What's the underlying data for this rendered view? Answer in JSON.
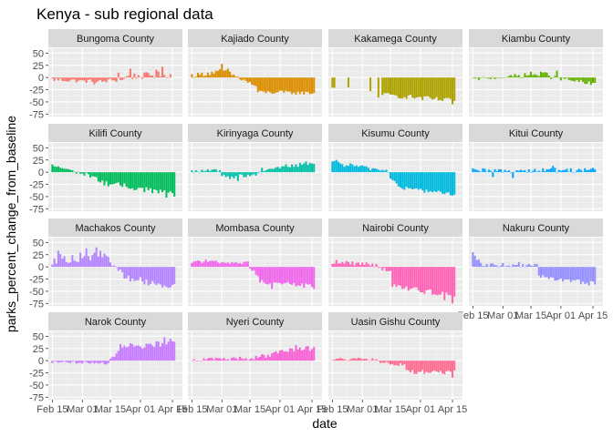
{
  "chart_data": {
    "type": "bar",
    "title": "Kenya - sub regional data",
    "xlabel": "date",
    "ylabel": "parks_percent_change_from_baseline",
    "ylim": [
      -80,
      60
    ],
    "y_ticks": [
      50,
      25,
      0,
      -25,
      -50,
      -75
    ],
    "y_tick_labels": [
      "50",
      "25",
      "0",
      "-25",
      "-50",
      "-75"
    ],
    "x_range_days": [
      -2,
      65
    ],
    "x_tick_days": [
      0,
      15,
      29,
      44,
      60
    ],
    "x_tick_labels": [
      "Feb 15",
      "Mar 01",
      "Mar 15",
      "Apr 01",
      "Apr 15"
    ],
    "facet_layout": "4 columns x 4 rows",
    "facets": [
      {
        "name": "Bungoma County",
        "color": "#F8766D",
        "segments": [
          {
            "from": 0,
            "to": 20,
            "start": -4,
            "end": -8,
            "noise": 4
          },
          {
            "from": 21,
            "to": 36,
            "start": -10,
            "end": -3,
            "noise": 5
          },
          {
            "from": 37,
            "to": 59,
            "start": 2,
            "end": 6,
            "noise": 7
          }
        ],
        "spikes": [
          [
            33,
            10
          ],
          [
            39,
            18
          ],
          [
            52,
            16
          ],
          [
            55,
            22
          ]
        ]
      },
      {
        "name": "Kajiado County",
        "color": "#DB8E00",
        "segments": [
          {
            "from": 0,
            "to": 18,
            "start": 4,
            "end": 15,
            "noise": 5
          },
          {
            "from": 19,
            "to": 32,
            "start": 8,
            "end": -18,
            "noise": 5
          },
          {
            "from": 33,
            "to": 61,
            "start": -30,
            "end": -32,
            "noise": 4
          }
        ],
        "spikes": [
          [
            15,
            28
          ]
        ]
      },
      {
        "name": "Kakamega County",
        "color": "#AEA200",
        "segments": [
          {
            "from": 0,
            "to": 1,
            "start": -22,
            "end": -22,
            "noise": 2
          },
          {
            "from": 8,
            "to": 8,
            "start": -20,
            "end": -20,
            "noise": 1
          },
          {
            "from": 19,
            "to": 19,
            "start": -28,
            "end": -28,
            "noise": 1
          },
          {
            "from": 23,
            "to": 23,
            "start": -40,
            "end": -40,
            "noise": 1
          },
          {
            "from": 25,
            "to": 61,
            "start": -35,
            "end": -48,
            "noise": 5
          }
        ],
        "spikes": [
          [
            60,
            -55
          ]
        ]
      },
      {
        "name": "Kiambu County",
        "color": "#64B200",
        "segments": [
          {
            "from": 0,
            "to": 20,
            "start": -3,
            "end": 2,
            "noise": 3
          },
          {
            "from": 21,
            "to": 38,
            "start": 3,
            "end": 8,
            "noise": 5
          },
          {
            "from": 39,
            "to": 61,
            "start": 2,
            "end": -15,
            "noise": 5
          }
        ],
        "spikes": [
          [
            29,
            12
          ],
          [
            42,
            14
          ]
        ]
      },
      {
        "name": "Kilifi County",
        "color": "#00BD5C",
        "segments": [
          {
            "from": 0,
            "to": 8,
            "start": 14,
            "end": 5,
            "noise": 3
          },
          {
            "from": 9,
            "to": 22,
            "start": 3,
            "end": -10,
            "noise": 4
          },
          {
            "from": 23,
            "to": 61,
            "start": -20,
            "end": -45,
            "noise": 6
          }
        ],
        "spikes": [
          [
            57,
            -52
          ]
        ]
      },
      {
        "name": "Kirinyaga County",
        "color": "#00C1A7",
        "segments": [
          {
            "from": 0,
            "to": 14,
            "start": 2,
            "end": 4,
            "noise": 3
          },
          {
            "from": 15,
            "to": 33,
            "start": -10,
            "end": -5,
            "noise": 5
          },
          {
            "from": 34,
            "to": 61,
            "start": 5,
            "end": 20,
            "noise": 5
          }
        ],
        "spikes": [
          [
            23,
            -18
          ]
        ]
      },
      {
        "name": "Kisumu County",
        "color": "#00BADE",
        "segments": [
          {
            "from": 0,
            "to": 14,
            "start": 18,
            "end": 12,
            "noise": 5
          },
          {
            "from": 15,
            "to": 28,
            "start": 10,
            "end": 3,
            "noise": 4
          },
          {
            "from": 29,
            "to": 33,
            "start": -10,
            "end": -30,
            "noise": 4
          },
          {
            "from": 34,
            "to": 61,
            "start": -32,
            "end": -45,
            "noise": 4
          }
        ],
        "spikes": [
          [
            2,
            25
          ]
        ]
      },
      {
        "name": "Kitui County",
        "color": "#00A6FF",
        "segments": [
          {
            "from": 0,
            "to": 61,
            "start": 3,
            "end": 5,
            "noise": 5
          }
        ],
        "spikes": [
          [
            10,
            -10
          ],
          [
            20,
            -12
          ],
          [
            40,
            13
          ]
        ]
      },
      {
        "name": "Machakos County",
        "color": "#B385FF",
        "segments": [
          {
            "from": 0,
            "to": 28,
            "start": 15,
            "end": 25,
            "noise": 10
          },
          {
            "from": 29,
            "to": 35,
            "start": 5,
            "end": -10,
            "noise": 5
          },
          {
            "from": 36,
            "to": 61,
            "start": -22,
            "end": -40,
            "noise": 7
          }
        ],
        "spikes": [
          [
            3,
            33
          ],
          [
            17,
            38
          ],
          [
            22,
            40
          ]
        ]
      },
      {
        "name": "Mombasa County",
        "color": "#EF67EB",
        "segments": [
          {
            "from": 0,
            "to": 28,
            "start": 12,
            "end": 8,
            "noise": 4
          },
          {
            "from": 29,
            "to": 33,
            "start": -5,
            "end": -15,
            "noise": 4
          },
          {
            "from": 34,
            "to": 61,
            "start": -30,
            "end": -40,
            "noise": 5
          }
        ],
        "spikes": [
          [
            40,
            -45
          ]
        ]
      },
      {
        "name": "Nairobi County",
        "color": "#FF63B6",
        "segments": [
          {
            "from": 0,
            "to": 22,
            "start": 10,
            "end": 5,
            "noise": 5
          },
          {
            "from": 23,
            "to": 29,
            "start": 0,
            "end": -10,
            "noise": 4
          },
          {
            "from": 30,
            "to": 61,
            "start": -40,
            "end": -58,
            "noise": 6
          }
        ],
        "spikes": [
          [
            60,
            -75
          ],
          [
            56,
            -68
          ]
        ]
      },
      {
        "name": "Nakuru County",
        "color": "#9590FF",
        "segments": [
          {
            "from": 0,
            "to": 3,
            "start": 22,
            "end": 12,
            "noise": 4
          },
          {
            "from": 4,
            "to": 32,
            "start": 5,
            "end": 2,
            "noise": 4
          },
          {
            "from": 33,
            "to": 61,
            "start": -20,
            "end": -35,
            "noise": 5
          }
        ],
        "spikes": [
          [
            0,
            30
          ],
          [
            23,
            10
          ]
        ]
      },
      {
        "name": "Narok County",
        "color": "#C77CFF",
        "segments": [
          {
            "from": 0,
            "to": 28,
            "start": -3,
            "end": -5,
            "noise": 3
          },
          {
            "from": 29,
            "to": 33,
            "start": 5,
            "end": 20,
            "noise": 5
          },
          {
            "from": 34,
            "to": 61,
            "start": 28,
            "end": 38,
            "noise": 7
          }
        ],
        "spikes": [
          [
            56,
            48
          ],
          [
            59,
            45
          ]
        ]
      },
      {
        "name": "Nyeri County",
        "color": "#FB61D7",
        "segments": [
          {
            "from": 0,
            "to": 28,
            "start": 2,
            "end": 5,
            "noise": 4
          },
          {
            "from": 29,
            "to": 40,
            "start": 5,
            "end": 12,
            "noise": 5
          },
          {
            "from": 41,
            "to": 61,
            "start": 15,
            "end": 25,
            "noise": 6
          }
        ],
        "spikes": [
          [
            52,
            32
          ],
          [
            58,
            30
          ]
        ]
      },
      {
        "name": "Uasin Gishu County",
        "color": "#FF6C91",
        "segments": [
          {
            "from": 0,
            "to": 23,
            "start": 3,
            "end": 2,
            "noise": 4
          },
          {
            "from": 24,
            "to": 36,
            "start": -3,
            "end": -10,
            "noise": 4
          },
          {
            "from": 37,
            "to": 61,
            "start": -22,
            "end": -25,
            "noise": 5
          }
        ],
        "spikes": [
          [
            60,
            -35
          ]
        ]
      }
    ]
  }
}
